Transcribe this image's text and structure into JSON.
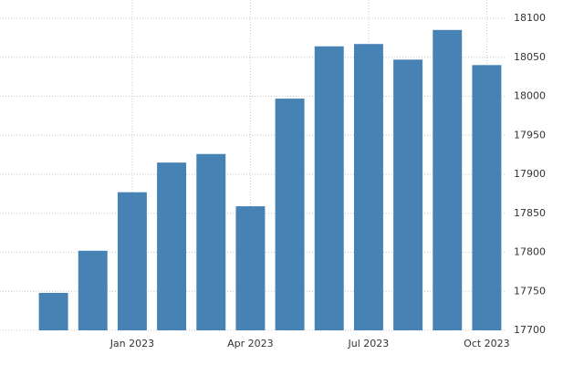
{
  "chart_data": {
    "type": "bar",
    "categories": [
      null,
      null,
      "Jan 2023",
      null,
      null,
      "Apr 2023",
      null,
      null,
      "Jul 2023",
      null,
      null,
      "Oct 2023"
    ],
    "values": [
      17748,
      17802,
      17877,
      17915,
      17926,
      17859,
      17997,
      18064,
      18067,
      18047,
      18085,
      18040
    ],
    "color": "#4682b4",
    "ylim": [
      17700,
      18100
    ],
    "yticks": [
      17700,
      17750,
      17800,
      17850,
      17900,
      17950,
      18000,
      18050,
      18100
    ],
    "grid": true
  }
}
